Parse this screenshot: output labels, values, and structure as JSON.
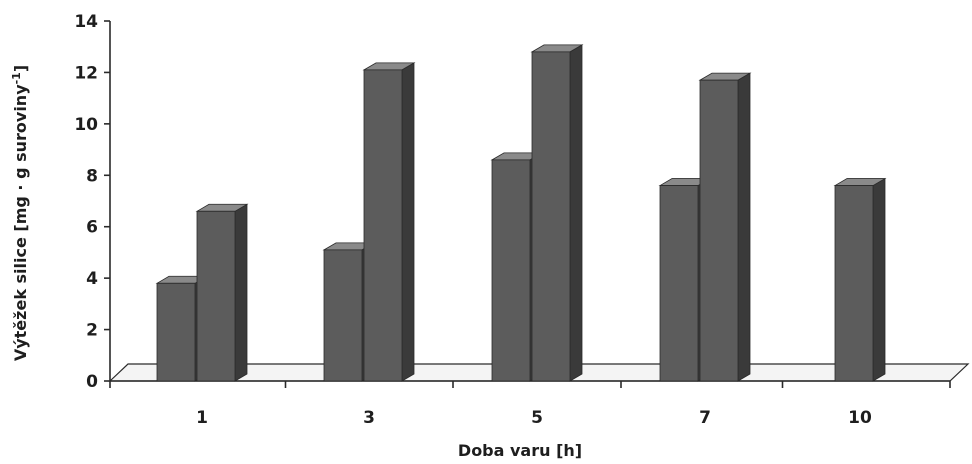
{
  "chart_data": {
    "type": "bar",
    "subtype": "3d-clustered-column",
    "categories": [
      "1",
      "3",
      "5",
      "7",
      "10"
    ],
    "series": [
      {
        "values": [
          3.8,
          5.1,
          8.6,
          7.6,
          7.6
        ]
      },
      {
        "values": [
          6.6,
          12.1,
          12.8,
          11.7,
          null
        ]
      }
    ],
    "ylim": [
      0,
      14
    ],
    "yticks": [
      "0",
      "2",
      "4",
      "6",
      "8",
      "10",
      "12",
      "14"
    ],
    "xlabel": "Doba varu [h]",
    "ylabel_main": "Výtěžek silice [mg · g suroviny",
    "ylabel_sup": "-1",
    "ylabel_end": "]",
    "legend": "none",
    "grid": false,
    "colors": {
      "front": "#5c5c5c",
      "side": "#3a3a3a",
      "top": "#8a8a8a",
      "edge": "#2a2a2a"
    }
  }
}
